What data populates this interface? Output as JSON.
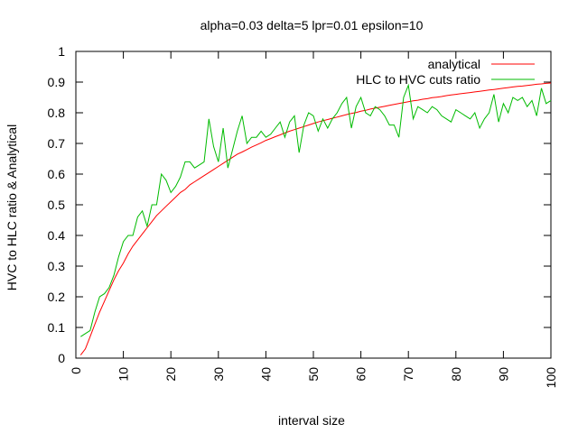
{
  "chart_data": {
    "type": "line",
    "title": "alpha=0.03 delta=5 lpr=0.01 epsilon=10",
    "xlabel": "interval size",
    "ylabel": "HVC to HLC ratio & Analytical",
    "xlim": [
      0,
      100
    ],
    "ylim": [
      0,
      1
    ],
    "x_ticks": [
      "0",
      "10",
      "20",
      "30",
      "40",
      "50",
      "60",
      "70",
      "80",
      "90",
      "100"
    ],
    "y_ticks": [
      "0",
      "0.1",
      "0.2",
      "0.3",
      "0.4",
      "0.5",
      "0.6",
      "0.7",
      "0.8",
      "0.9",
      "1"
    ],
    "grid": false,
    "legend_position": "top-right",
    "series": [
      {
        "name": "analytical",
        "color": "#ff0000",
        "x": [
          1,
          2,
          3,
          4,
          5,
          6,
          7,
          8,
          9,
          10,
          11,
          12,
          13,
          14,
          15,
          16,
          17,
          18,
          19,
          20,
          21,
          22,
          23,
          24,
          25,
          26,
          27,
          28,
          29,
          30,
          31,
          32,
          33,
          34,
          35,
          36,
          37,
          38,
          39,
          40,
          41,
          42,
          43,
          44,
          45,
          46,
          47,
          48,
          49,
          50,
          51,
          52,
          53,
          54,
          55,
          56,
          57,
          58,
          59,
          60,
          61,
          62,
          63,
          64,
          65,
          66,
          67,
          68,
          69,
          70,
          71,
          72,
          73,
          74,
          75,
          76,
          77,
          78,
          79,
          80,
          81,
          82,
          83,
          84,
          85,
          86,
          87,
          88,
          89,
          90,
          91,
          92,
          93,
          94,
          95,
          96,
          97,
          98,
          99,
          100
        ],
        "values": [
          0.01,
          0.03,
          0.07,
          0.11,
          0.15,
          0.185,
          0.22,
          0.255,
          0.285,
          0.31,
          0.34,
          0.365,
          0.385,
          0.405,
          0.425,
          0.445,
          0.465,
          0.48,
          0.495,
          0.51,
          0.525,
          0.54,
          0.55,
          0.565,
          0.575,
          0.585,
          0.595,
          0.605,
          0.615,
          0.625,
          0.635,
          0.645,
          0.655,
          0.665,
          0.672,
          0.68,
          0.688,
          0.695,
          0.702,
          0.71,
          0.716,
          0.722,
          0.728,
          0.734,
          0.74,
          0.745,
          0.75,
          0.755,
          0.76,
          0.765,
          0.77,
          0.774,
          0.778,
          0.782,
          0.786,
          0.79,
          0.794,
          0.798,
          0.801,
          0.805,
          0.808,
          0.812,
          0.815,
          0.818,
          0.821,
          0.824,
          0.827,
          0.83,
          0.833,
          0.836,
          0.839,
          0.841,
          0.844,
          0.846,
          0.849,
          0.851,
          0.853,
          0.856,
          0.858,
          0.86,
          0.862,
          0.864,
          0.866,
          0.868,
          0.87,
          0.872,
          0.874,
          0.876,
          0.878,
          0.88,
          0.882,
          0.884,
          0.886,
          0.887,
          0.889,
          0.891,
          0.893,
          0.894,
          0.896,
          0.897
        ]
      },
      {
        "name": "HLC to HVC cuts ratio",
        "color": "#00bb00",
        "x": [
          1,
          2,
          3,
          4,
          5,
          6,
          7,
          8,
          9,
          10,
          11,
          12,
          13,
          14,
          15,
          16,
          17,
          18,
          19,
          20,
          21,
          22,
          23,
          24,
          25,
          26,
          27,
          28,
          29,
          30,
          31,
          32,
          33,
          34,
          35,
          36,
          37,
          38,
          39,
          40,
          41,
          42,
          43,
          44,
          45,
          46,
          47,
          48,
          49,
          50,
          51,
          52,
          53,
          54,
          55,
          56,
          57,
          58,
          59,
          60,
          61,
          62,
          63,
          64,
          65,
          66,
          67,
          68,
          69,
          70,
          71,
          72,
          73,
          74,
          75,
          76,
          77,
          78,
          79,
          80,
          81,
          82,
          83,
          84,
          85,
          86,
          87,
          88,
          89,
          90,
          91,
          92,
          93,
          94,
          95,
          96,
          97,
          98,
          99,
          100
        ],
        "values": [
          0.07,
          0.08,
          0.09,
          0.15,
          0.2,
          0.21,
          0.23,
          0.27,
          0.33,
          0.38,
          0.4,
          0.4,
          0.46,
          0.48,
          0.43,
          0.5,
          0.5,
          0.6,
          0.58,
          0.54,
          0.56,
          0.59,
          0.64,
          0.64,
          0.62,
          0.63,
          0.64,
          0.78,
          0.69,
          0.64,
          0.75,
          0.62,
          0.68,
          0.74,
          0.79,
          0.7,
          0.72,
          0.72,
          0.74,
          0.72,
          0.73,
          0.75,
          0.77,
          0.72,
          0.77,
          0.79,
          0.67,
          0.76,
          0.8,
          0.79,
          0.74,
          0.78,
          0.75,
          0.78,
          0.8,
          0.83,
          0.85,
          0.75,
          0.82,
          0.85,
          0.8,
          0.79,
          0.82,
          0.81,
          0.79,
          0.76,
          0.76,
          0.72,
          0.85,
          0.89,
          0.78,
          0.82,
          0.81,
          0.8,
          0.82,
          0.81,
          0.79,
          0.78,
          0.77,
          0.81,
          0.8,
          0.79,
          0.78,
          0.8,
          0.75,
          0.78,
          0.8,
          0.86,
          0.77,
          0.83,
          0.8,
          0.85,
          0.84,
          0.85,
          0.82,
          0.84,
          0.79,
          0.88,
          0.83,
          0.84
        ]
      }
    ]
  }
}
